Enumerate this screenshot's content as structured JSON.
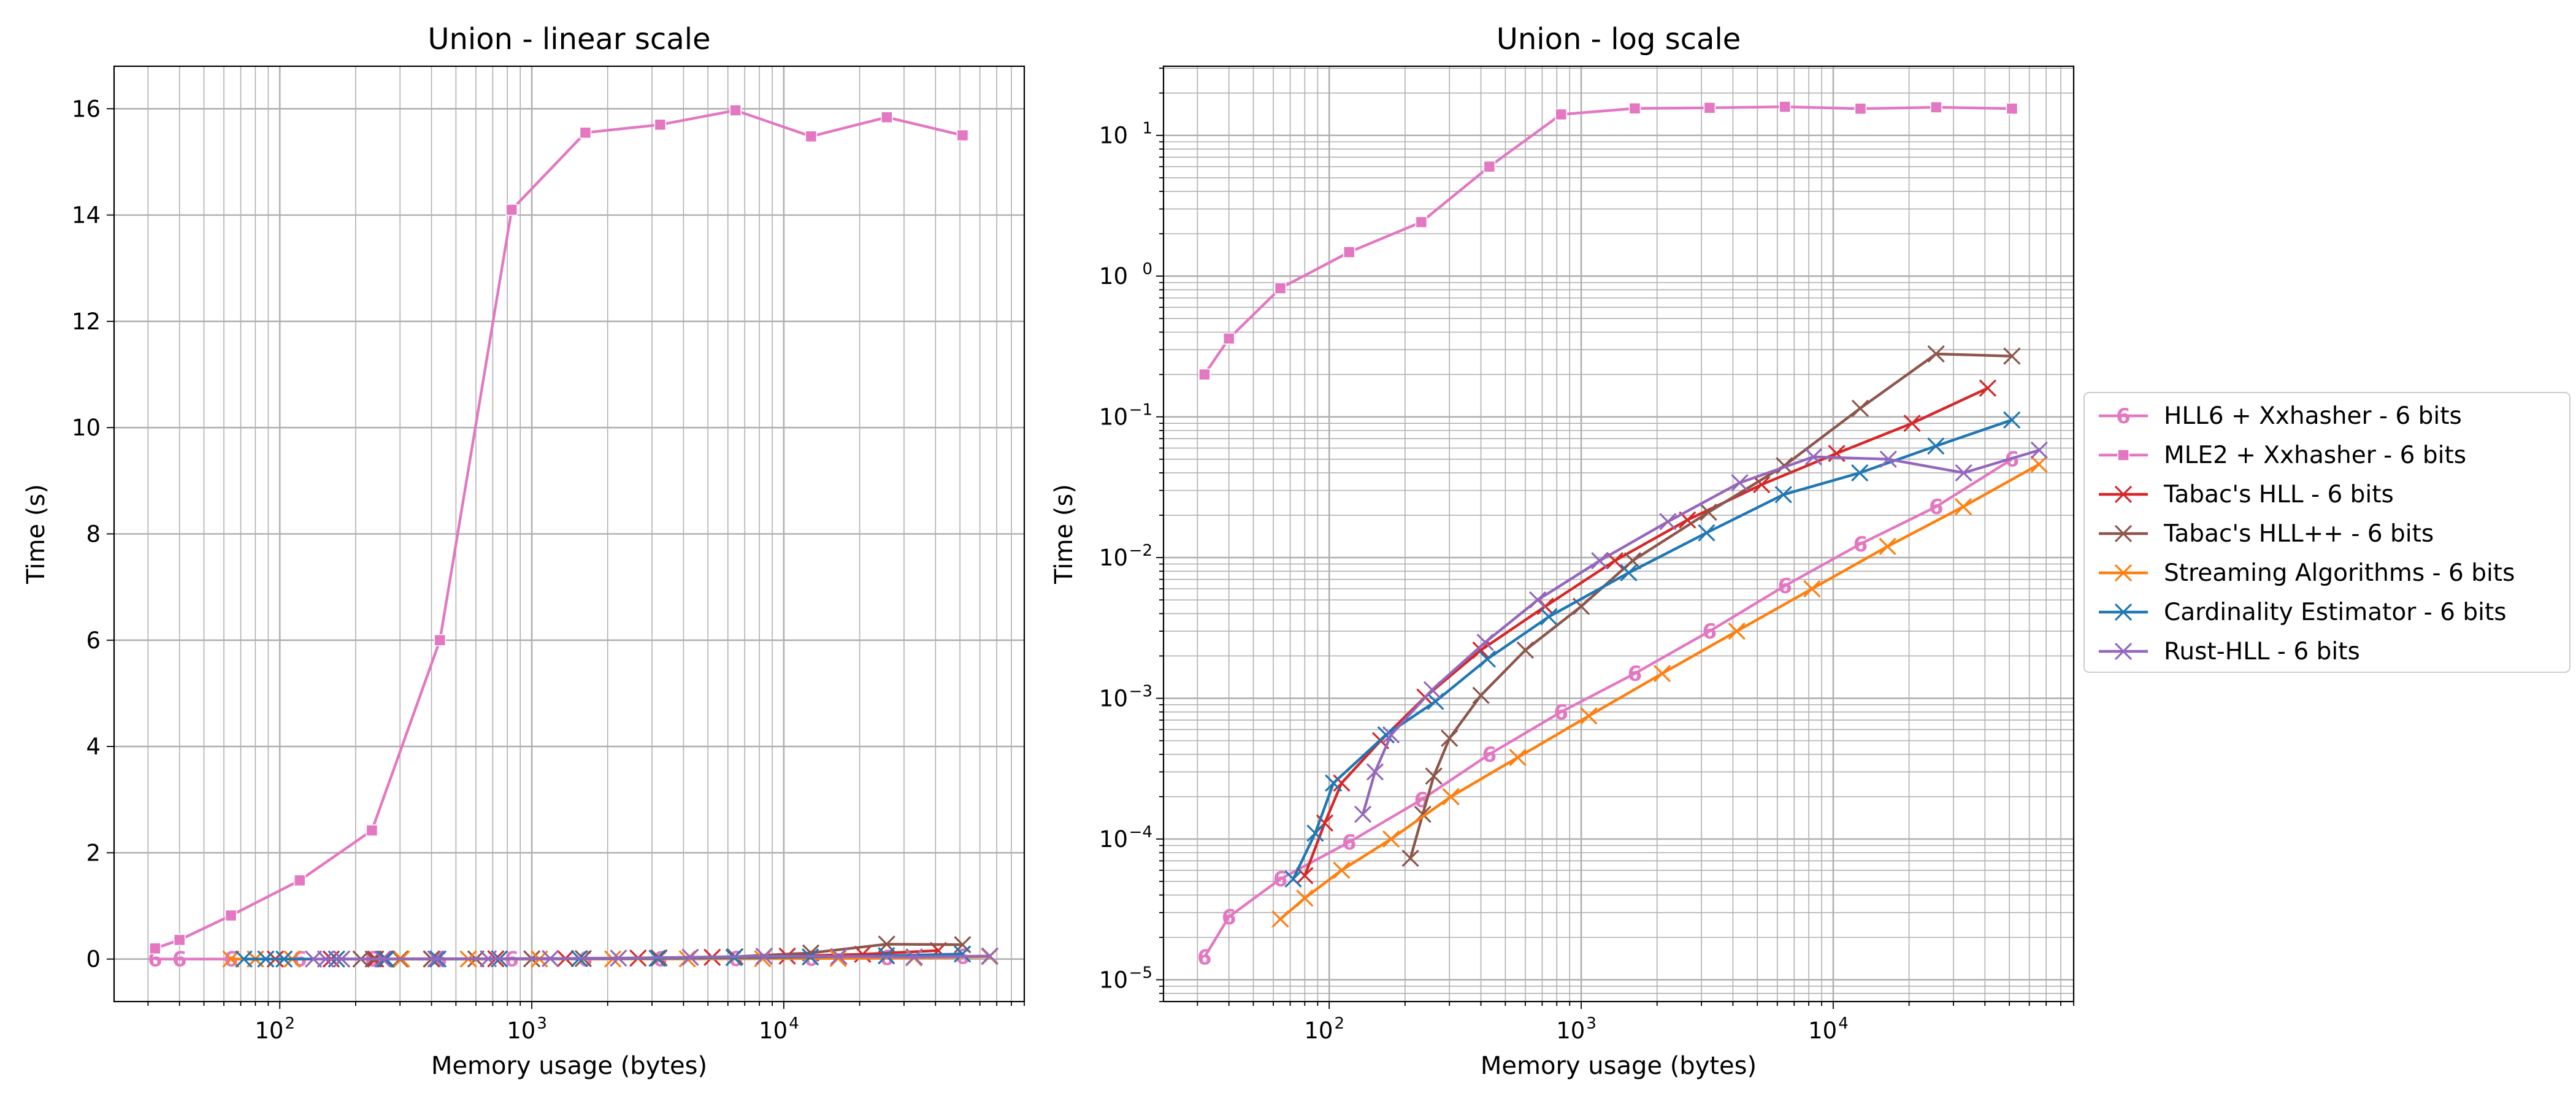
{
  "chart_data": [
    {
      "type": "line",
      "title": "Union - linear scale",
      "xlabel": "Memory usage (bytes)",
      "ylabel": "Time (s)",
      "xscale": "log",
      "yscale": "linear",
      "xlim": [
        22,
        90000
      ],
      "ylim": [
        -0.8,
        16.8
      ],
      "xticks": [
        {
          "base": "10",
          "exp": "2",
          "v": 100
        },
        {
          "base": "10",
          "exp": "3",
          "v": 1000
        },
        {
          "base": "10",
          "exp": "4",
          "v": 10000
        }
      ],
      "yticks": [
        "0",
        "2",
        "4",
        "6",
        "8",
        "10",
        "12",
        "14",
        "16"
      ],
      "grid": "on (major and minor)"
    },
    {
      "type": "line",
      "title": "Union - log scale",
      "xlabel": "Memory usage (bytes)",
      "ylabel": "Time (s)",
      "xscale": "log",
      "yscale": "log",
      "xlim": [
        22,
        90000
      ],
      "ylim": [
        7e-06,
        31
      ],
      "xticks": [
        {
          "base": "10",
          "exp": "2",
          "v": 100
        },
        {
          "base": "10",
          "exp": "3",
          "v": 1000
        },
        {
          "base": "10",
          "exp": "4",
          "v": 10000
        }
      ],
      "yticks": [
        {
          "base": "10",
          "exp": "−5",
          "v": 1e-05
        },
        {
          "base": "10",
          "exp": "−4",
          "v": 0.0001
        },
        {
          "base": "10",
          "exp": "−3",
          "v": 0.001
        },
        {
          "base": "10",
          "exp": "−2",
          "v": 0.01
        },
        {
          "base": "10",
          "exp": "−1",
          "v": 0.1
        },
        {
          "base": "10",
          "exp": "0",
          "v": 1
        },
        {
          "base": "10",
          "exp": "1",
          "v": 10
        }
      ],
      "grid": "on (major and minor)"
    }
  ],
  "series": [
    {
      "name": "HLL6 + Xxhasher - 6 bits",
      "color": "#e377c2",
      "marker": "hll6",
      "x": [
        32,
        40,
        64,
        120,
        232,
        432,
        832,
        1632,
        3232,
        6432,
        12832,
        25632,
        51232
      ],
      "y": [
        1.45e-05,
        2.8e-05,
        5.2e-05,
        9.5e-05,
        0.00019,
        0.0004,
        0.0008,
        0.0015,
        0.003,
        0.0063,
        0.0125,
        0.023,
        0.05
      ]
    },
    {
      "name": "MLE2 + Xxhasher - 6 bits",
      "color": "#e377c2",
      "marker": "mle2",
      "x": [
        32,
        40,
        64,
        120,
        232,
        432,
        832,
        1632,
        3232,
        6432,
        12832,
        25632,
        51232
      ],
      "y": [
        0.2,
        0.36,
        0.82,
        1.48,
        2.42,
        6.0,
        14.1,
        15.55,
        15.7,
        15.97,
        15.48,
        15.84,
        15.5
      ]
    },
    {
      "name": "Tabac's HLL - 6 bits",
      "color": "#d62728",
      "marker": "x",
      "x": [
        80,
        96,
        112,
        160,
        240,
        400,
        720,
        1360,
        2640,
        5200,
        10320,
        20560,
        41040
      ],
      "y": [
        5.5e-05,
        0.00013,
        0.00025,
        0.0005,
        0.00102,
        0.0022,
        0.0045,
        0.0095,
        0.0185,
        0.033,
        0.055,
        0.09,
        0.16
      ]
    },
    {
      "name": "Tabac's HLL++ - 6 bits",
      "color": "#8c564b",
      "marker": "x",
      "x": [
        210,
        235,
        260,
        300,
        400,
        600,
        1000,
        1600,
        3200,
        6400,
        12800,
        25600,
        51200
      ],
      "y": [
        7.3e-05,
        0.00015,
        0.00028,
        0.00052,
        0.00105,
        0.0022,
        0.0045,
        0.0095,
        0.021,
        0.045,
        0.115,
        0.28,
        0.27
      ]
    },
    {
      "name": "Streaming Algorithms - 6 bits",
      "color": "#ff7f0e",
      "marker": "x",
      "x": [
        64,
        80,
        112,
        176,
        304,
        560,
        1072,
        2096,
        4144,
        8240,
        16432,
        32816,
        65584
      ],
      "y": [
        2.7e-05,
        3.8e-05,
        6e-05,
        0.0001,
        0.0002,
        0.00038,
        0.00075,
        0.0015,
        0.003,
        0.006,
        0.012,
        0.023,
        0.046
      ]
    },
    {
      "name": "Cardinality Estimator - 6 bits",
      "color": "#1f77b4",
      "marker": "x",
      "x": [
        72,
        88,
        104,
        168,
        264,
        424,
        744,
        1544,
        3144,
        6344,
        12744,
        25544,
        51144
      ],
      "y": [
        5.2e-05,
        0.00011,
        0.00025,
        0.00055,
        0.00095,
        0.0019,
        0.0038,
        0.0078,
        0.015,
        0.028,
        0.04,
        0.062,
        0.095
      ]
    },
    {
      "name": "Rust-HLL - 6 bits",
      "color": "#9467bd",
      "marker": "x",
      "x": [
        136,
        152,
        176,
        256,
        416,
        672,
        1184,
        2208,
        4256,
        8352,
        16544,
        32928,
        65696
      ],
      "y": [
        0.00015,
        0.0003,
        0.00055,
        0.00115,
        0.0025,
        0.005,
        0.0095,
        0.018,
        0.034,
        0.052,
        0.05,
        0.04,
        0.058
      ]
    }
  ]
}
